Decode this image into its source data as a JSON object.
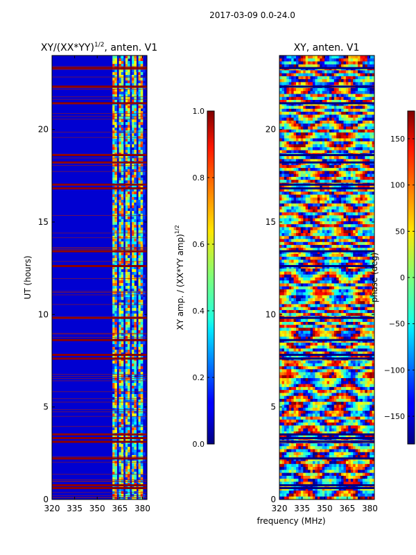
{
  "figure": {
    "suptitle": "2017-03-09 0.0-24.0",
    "shared_xlabel": "frequency (MHz)"
  },
  "chart_data": [
    {
      "type": "heatmap",
      "title": "XY/(XX*YY)",
      "title_exponent": "1/2",
      "title_suffix": ", anten. V1",
      "xlabel": "",
      "ylabel": "UT (hours)",
      "xlim": [
        320,
        383
      ],
      "ylim": [
        0,
        24
      ],
      "xticks": [
        320,
        335,
        350,
        365,
        380
      ],
      "yticks": [
        0,
        5,
        10,
        15,
        20
      ],
      "colorbar": {
        "label": "XY amp. / (XX*YY amp)",
        "label_exponent": "1/2",
        "range": [
          0.0,
          1.0
        ],
        "ticks": [
          "0.0",
          "0.2",
          "0.4",
          "0.6",
          "0.8",
          "1.0"
        ],
        "tick_values": [
          0.0,
          0.2,
          0.4,
          0.6,
          0.8,
          1.0
        ]
      },
      "colormap": "jet"
    },
    {
      "type": "heatmap",
      "title": "XY, anten. V1",
      "xlabel": "frequency (MHz)",
      "ylabel": "",
      "xlim": [
        320,
        383
      ],
      "ylim": [
        0,
        24
      ],
      "xticks": [
        320,
        335,
        350,
        365,
        380
      ],
      "yticks": [
        0,
        5,
        10,
        15,
        20
      ],
      "colorbar": {
        "label": "phase (deg)",
        "range": [
          -180,
          180
        ],
        "ticks": [
          "−150",
          "−100",
          "−50",
          "0",
          "50",
          "100",
          "150"
        ],
        "tick_values": [
          -150,
          -100,
          -50,
          0,
          50,
          100,
          150
        ]
      },
      "colormap": "jet"
    }
  ]
}
